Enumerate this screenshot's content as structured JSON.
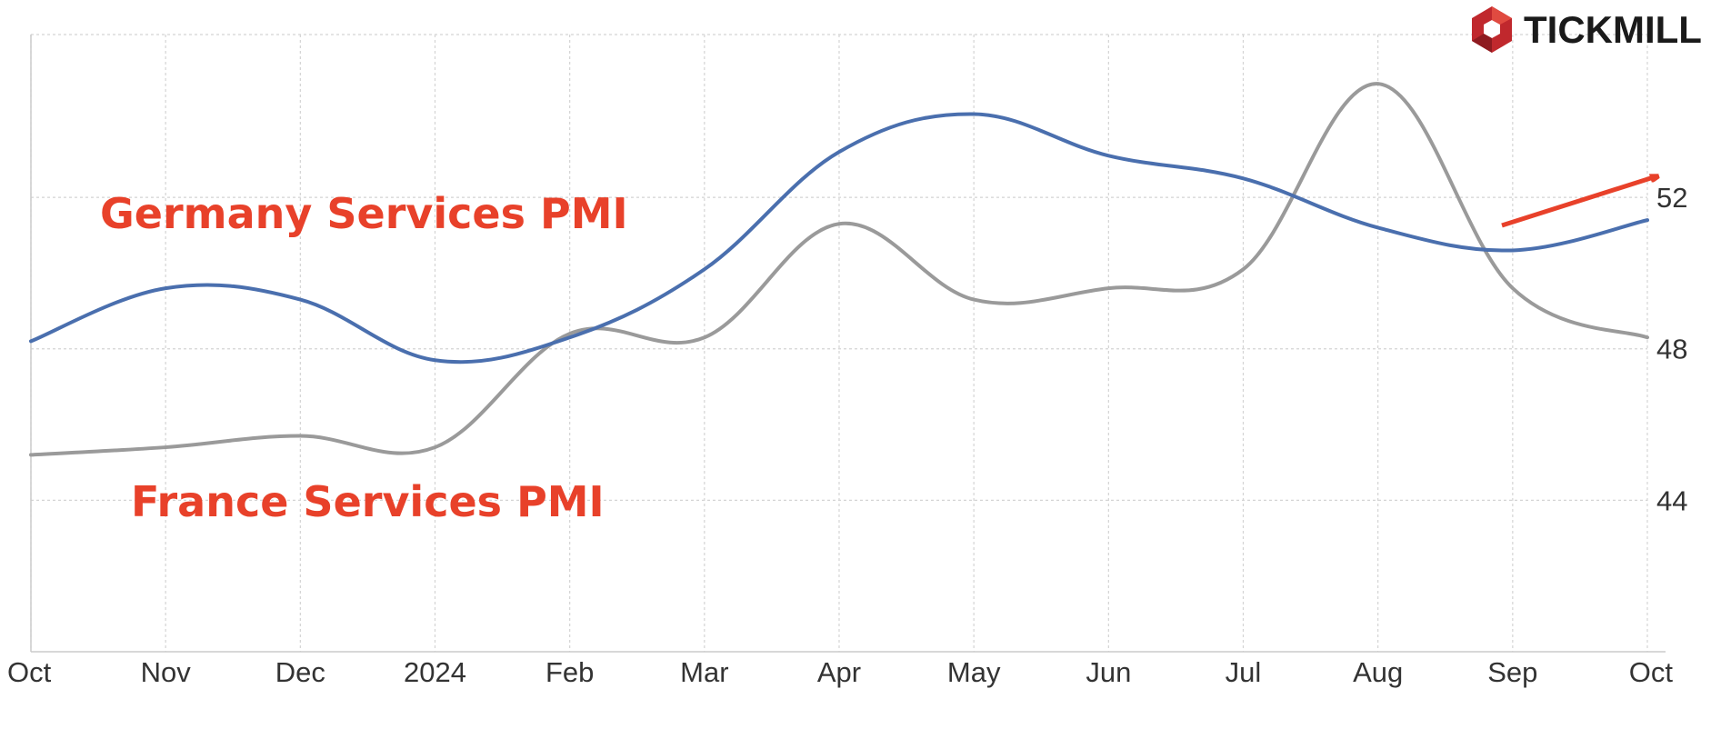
{
  "brand": {
    "name": "TICKMILL",
    "logo_icon": "hexagon-cube-icon",
    "logo_color": "#c0282d"
  },
  "chart_data": {
    "type": "line",
    "x": [
      "2023-10",
      "2023-11",
      "2023-12",
      "2024-01",
      "2024-02",
      "2024-03",
      "2024-04",
      "2024-05",
      "2024-06",
      "2024-07",
      "2024-08",
      "2024-09",
      "2024-10"
    ],
    "x_tick_labels": [
      "Oct",
      "Nov",
      "Dec",
      "2024",
      "Feb",
      "Mar",
      "Apr",
      "May",
      "Jun",
      "Jul",
      "Aug",
      "Sep",
      "Oct"
    ],
    "series": [
      {
        "name": "Germany Services PMI",
        "color": "#4a6fae",
        "values": [
          48.2,
          49.6,
          49.3,
          47.7,
          48.3,
          50.1,
          53.2,
          54.2,
          53.1,
          52.5,
          51.2,
          50.6,
          51.4
        ]
      },
      {
        "name": "France Services PMI",
        "color": "#9a9a9a",
        "values": [
          45.2,
          45.4,
          45.7,
          45.4,
          48.4,
          48.3,
          51.3,
          49.3,
          49.6,
          50.1,
          55.0,
          49.6,
          48.3
        ]
      }
    ],
    "y_ticks": [
      44,
      48,
      52
    ],
    "ylim": [
      40,
      56.3
    ],
    "y_axis_side": "right",
    "grid": true,
    "annotations": [
      {
        "text": "Germany Services PMI",
        "color": "#e8412a"
      },
      {
        "text": "France Services PMI",
        "color": "#e8412a"
      }
    ],
    "arrow_color": "#e8412a"
  }
}
